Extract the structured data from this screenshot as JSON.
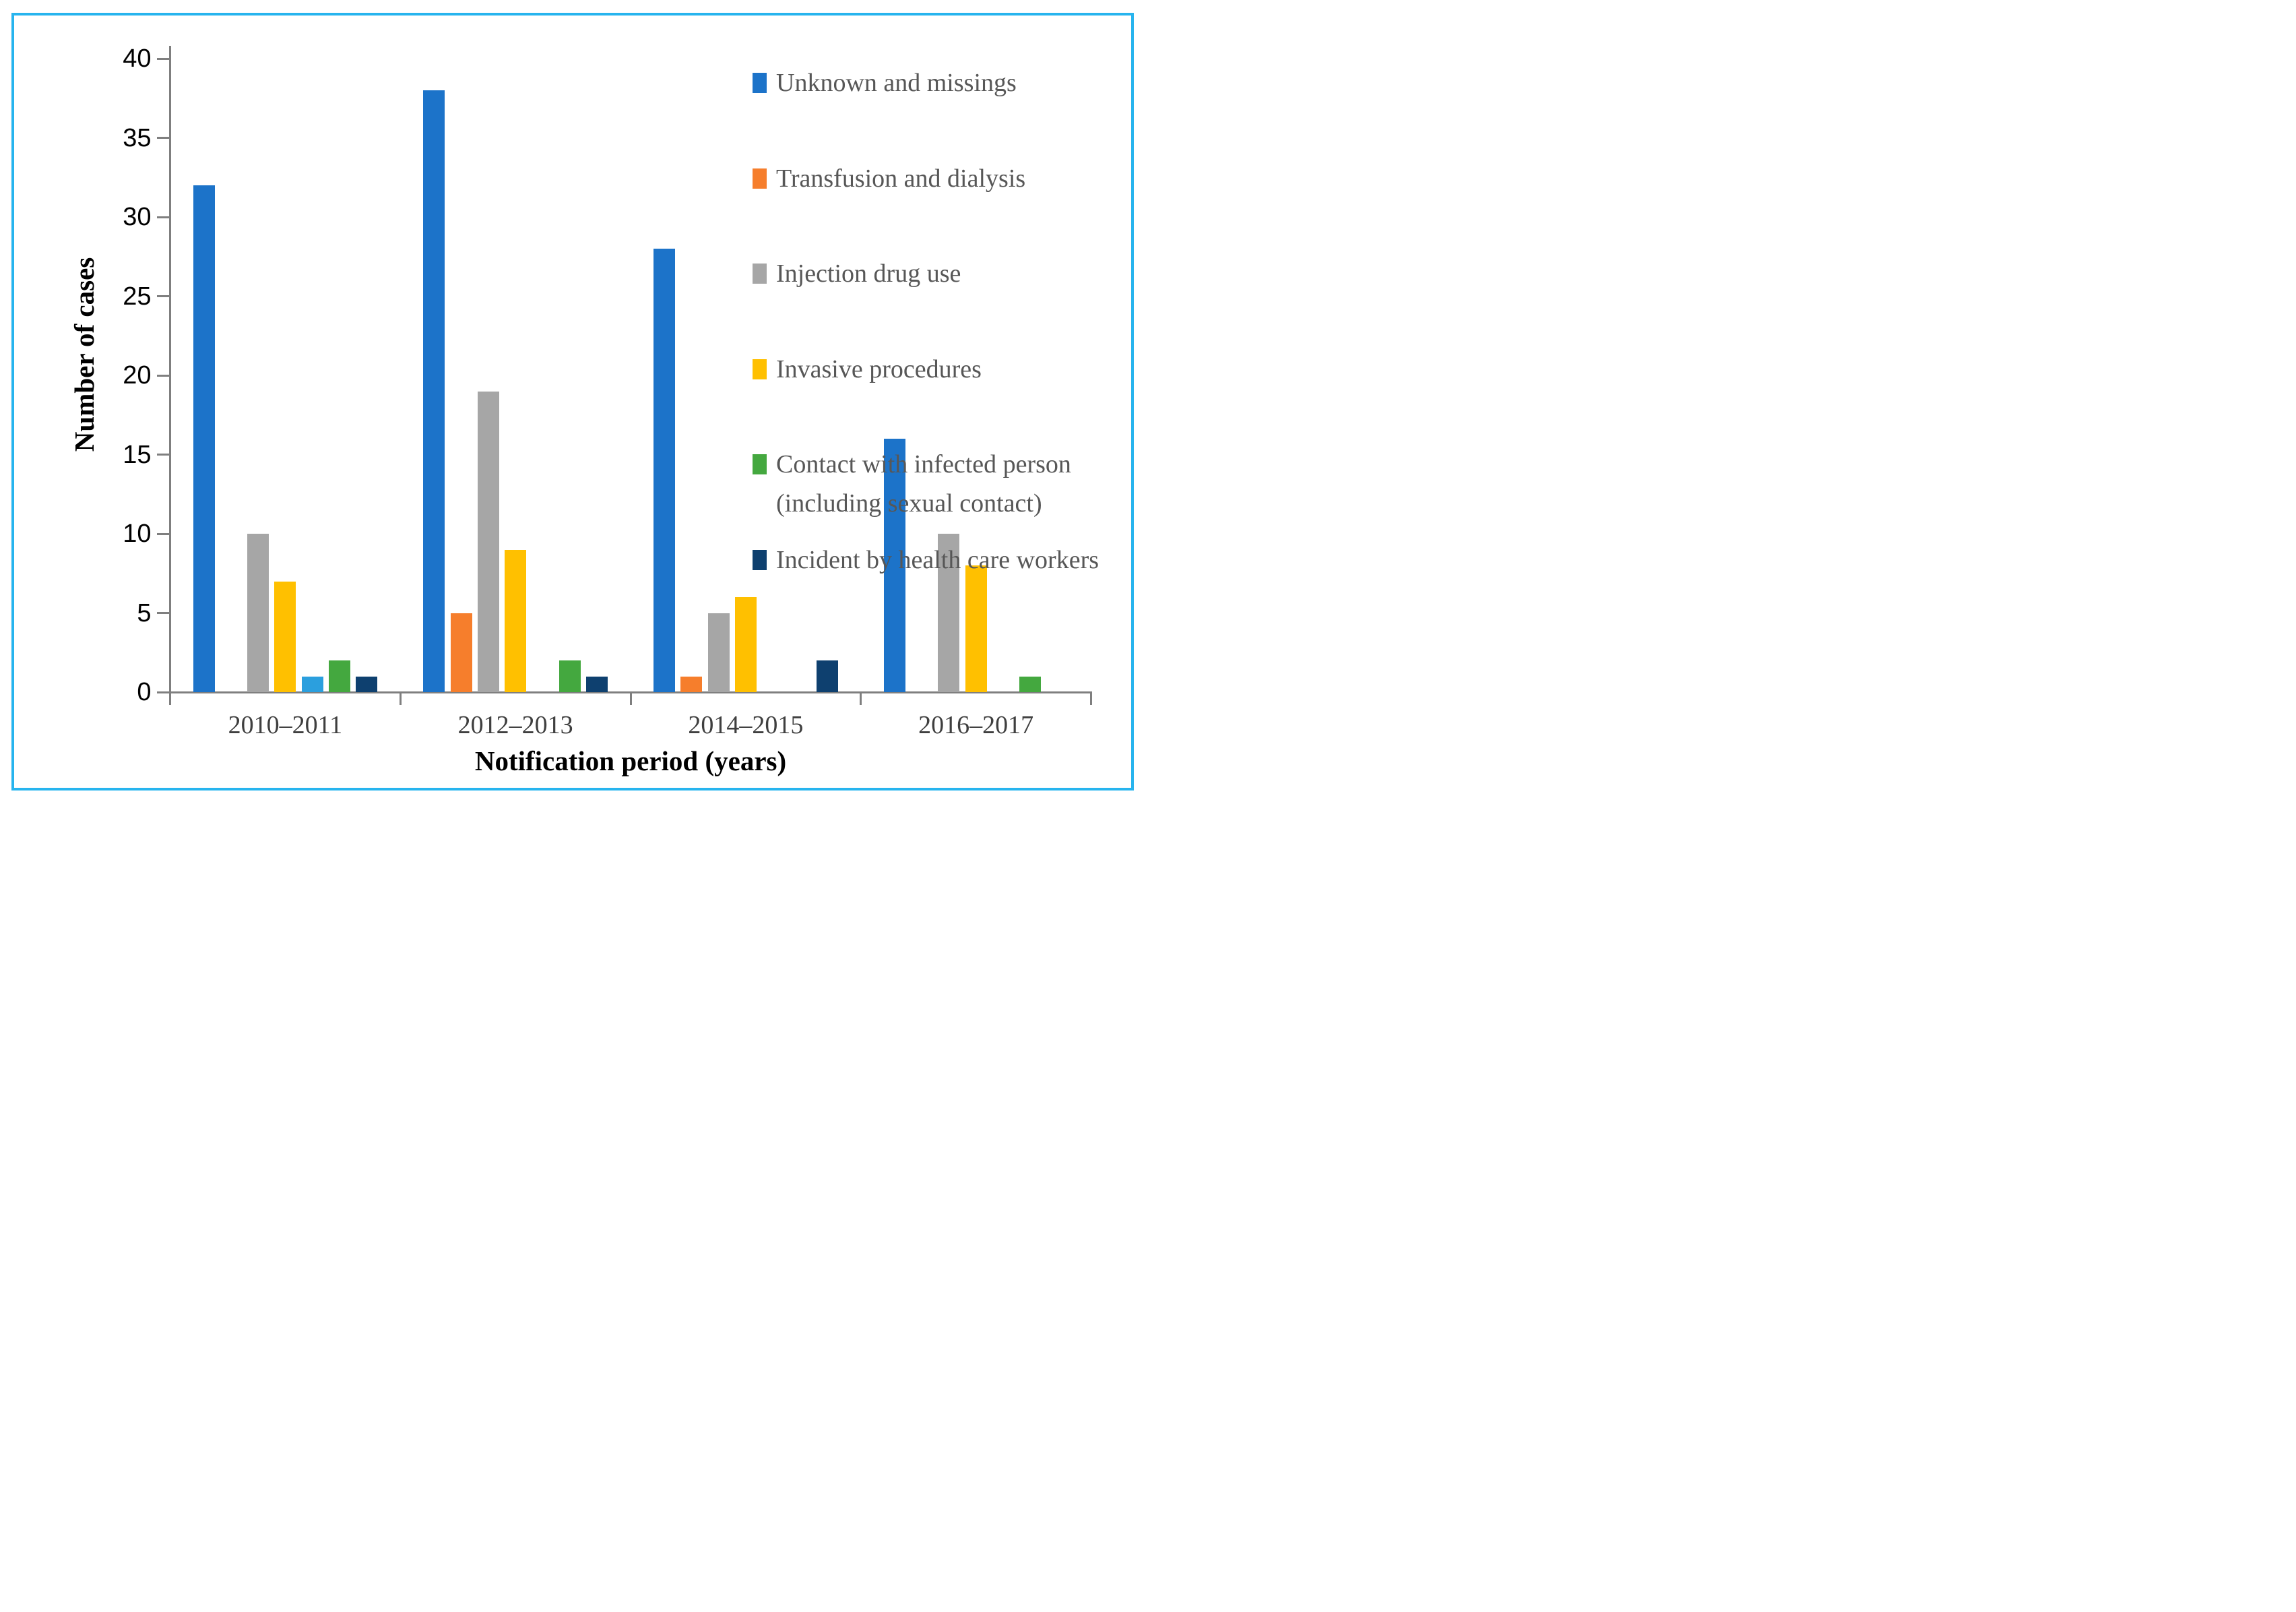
{
  "chart_data": {
    "type": "bar",
    "title": "",
    "xlabel": "Notification period (years)",
    "ylabel": "Number of cases",
    "categories": [
      "2010–2011",
      "2012–2013",
      "2014–2015",
      "2016–2017"
    ],
    "series": [
      {
        "name": "Unknown and missings",
        "color": "#1C73C9",
        "in_legend": true,
        "values": [
          32,
          38,
          28,
          16
        ]
      },
      {
        "name": "Transfusion and dialysis",
        "color": "#F67E2C",
        "in_legend": true,
        "values": [
          0,
          5,
          1,
          0
        ]
      },
      {
        "name": "Injection drug use",
        "color": "#A6A6A6",
        "in_legend": true,
        "values": [
          10,
          19,
          5,
          10
        ]
      },
      {
        "name": "Invasive procedures",
        "color": "#FFC000",
        "in_legend": true,
        "values": [
          7,
          9,
          6,
          8
        ]
      },
      {
        "name": "",
        "color": "#2B9FDE",
        "in_legend": false,
        "values": [
          1,
          0,
          0,
          0
        ]
      },
      {
        "name": "Contact with infected person (including sexual contact)",
        "color": "#44A83F",
        "in_legend": true,
        "values": [
          2,
          2,
          0,
          1
        ]
      },
      {
        "name": "Incident by health care workers",
        "color": "#0E406F",
        "in_legend": true,
        "values": [
          1,
          1,
          2,
          0
        ]
      }
    ],
    "ylim": [
      0,
      40
    ],
    "yticks": [
      0,
      5,
      10,
      15,
      20,
      25,
      30,
      35,
      40
    ],
    "grid": false,
    "legend_position": "top-right",
    "colors": {
      "axis": "#7F7F7F",
      "figure_border": "#27B4EE",
      "tick_label": "#000000",
      "category_label": "#3F3F3F",
      "legend_text": "#575757"
    }
  },
  "legend": {
    "items": [
      {
        "series_index": 0,
        "lines": [
          "Unknown and missings"
        ]
      },
      {
        "series_index": 1,
        "lines": [
          "Transfusion and dialysis"
        ]
      },
      {
        "series_index": 2,
        "lines": [
          "Injection drug use"
        ]
      },
      {
        "series_index": 3,
        "lines": [
          "Invasive procedures"
        ]
      },
      {
        "series_index": 5,
        "lines": [
          "Contact with infected person",
          "(including sexual contact)"
        ]
      },
      {
        "series_index": 6,
        "lines": [
          "Incident by health care workers"
        ]
      }
    ]
  }
}
